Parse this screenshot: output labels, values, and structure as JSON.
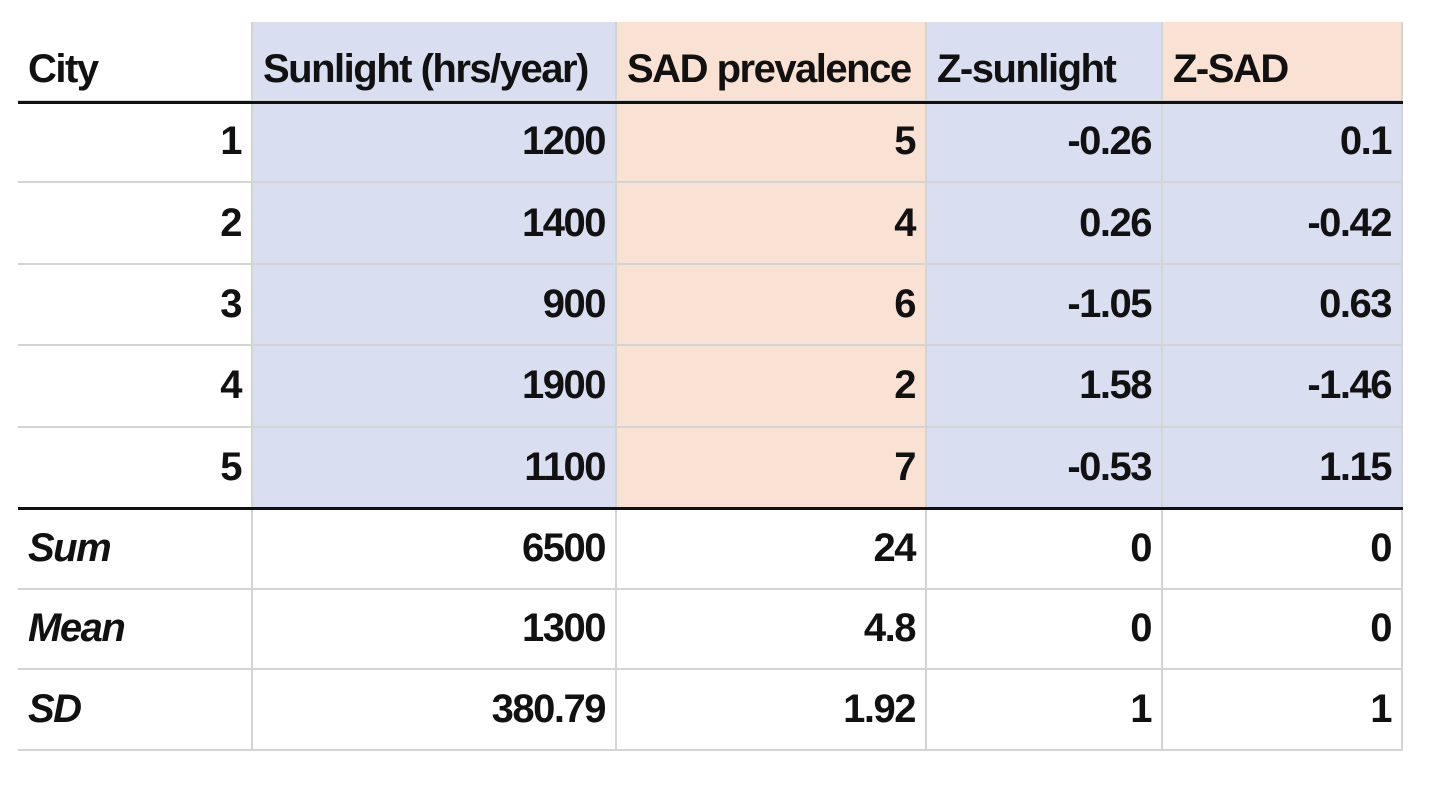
{
  "table": {
    "header": [
      "City",
      "Sunlight (hrs/year)",
      "SAD prevalence",
      "Z-sunlight",
      "Z-SAD"
    ],
    "rows": [
      [
        1,
        1200,
        5,
        -0.26,
        0.1
      ],
      [
        2,
        1400,
        4,
        0.26,
        -0.42
      ],
      [
        3,
        900,
        6,
        -1.05,
        0.63
      ],
      [
        4,
        1900,
        2,
        1.58,
        -1.46
      ],
      [
        5,
        1100,
        7,
        -0.53,
        1.15
      ]
    ],
    "summary": [
      [
        "Sum",
        6500,
        24,
        0,
        0
      ],
      [
        "Mean",
        1300,
        4.8,
        0,
        0
      ],
      [
        "SD",
        380.79,
        1.92,
        1,
        1
      ]
    ]
  }
}
